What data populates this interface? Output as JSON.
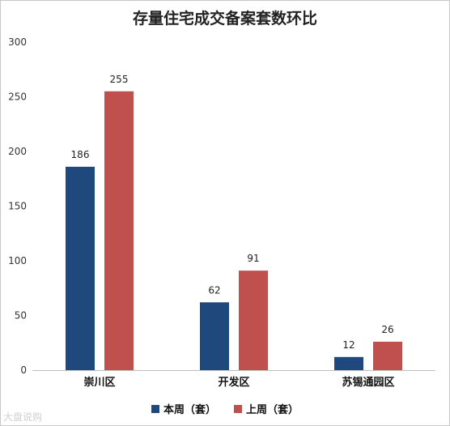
{
  "watermark": "大盘说购",
  "chart_data": {
    "type": "bar",
    "title": "存量住宅成交备案套数环比",
    "categories": [
      "崇川区",
      "开发区",
      "苏锡通园区"
    ],
    "series": [
      {
        "name": "本周（套）",
        "values": [
          186,
          62,
          12
        ],
        "color": "#1f497d"
      },
      {
        "name": "上周（套）",
        "values": [
          255,
          91,
          26
        ],
        "color": "#c0504d"
      }
    ],
    "ylim": [
      0,
      300
    ],
    "yticks": [
      0,
      50,
      100,
      150,
      200,
      250,
      300
    ],
    "xlabel": "",
    "ylabel": "",
    "grid": false,
    "legend": "bottom"
  }
}
